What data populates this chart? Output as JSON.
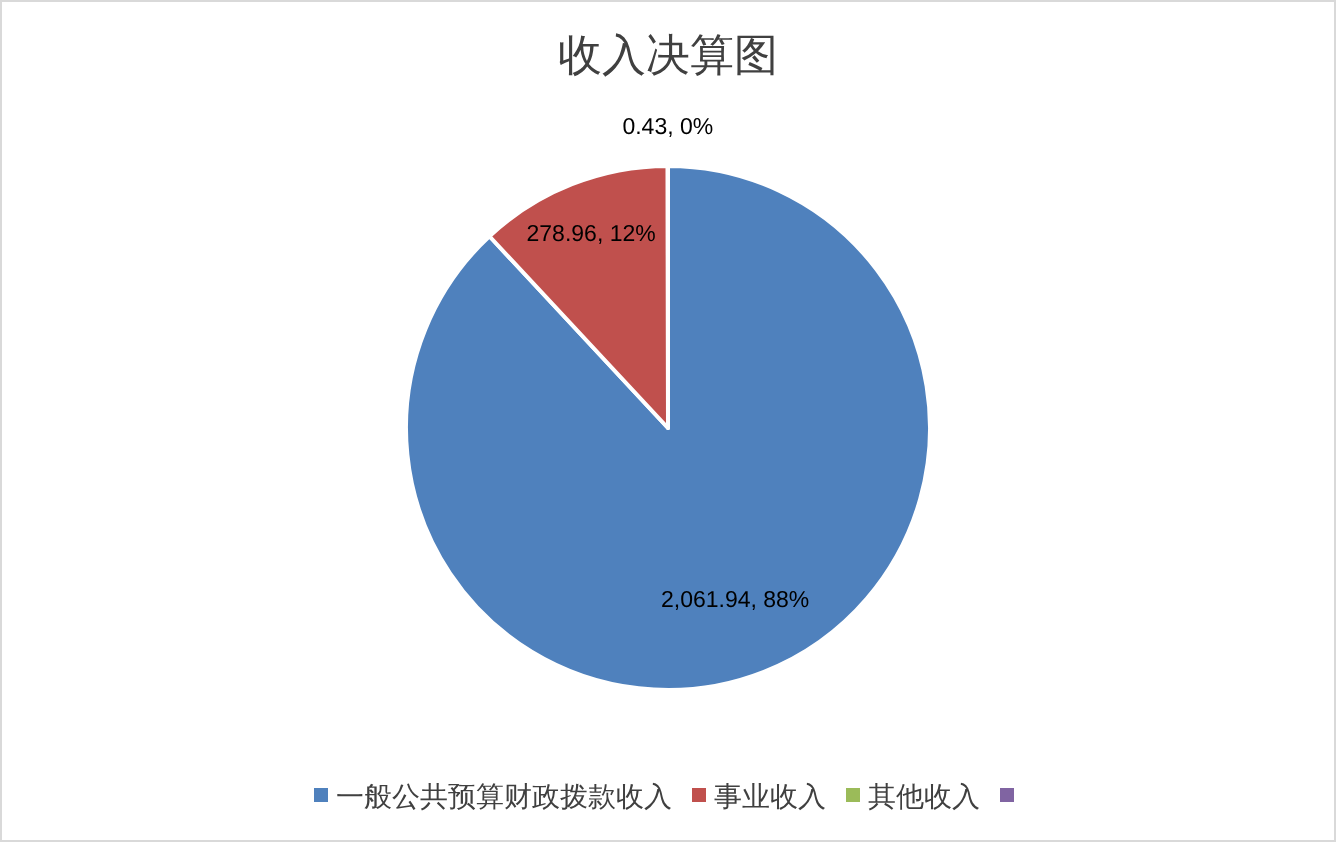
{
  "chart_data": {
    "type": "pie",
    "title": "收入决算图",
    "categories": [
      "一般公共预算财政拨款收入",
      "事业收入",
      "其他收入",
      null
    ],
    "values": [
      2061.94,
      278.96,
      0.43,
      null
    ],
    "colors": [
      "#4f81bd",
      "#c0504d",
      "#9bbb59",
      "#8064a2"
    ],
    "value_labels": [
      "2,061.94, 88%",
      "278.96, 12%",
      "0.43, 0%",
      null
    ],
    "legend": "bottom"
  }
}
